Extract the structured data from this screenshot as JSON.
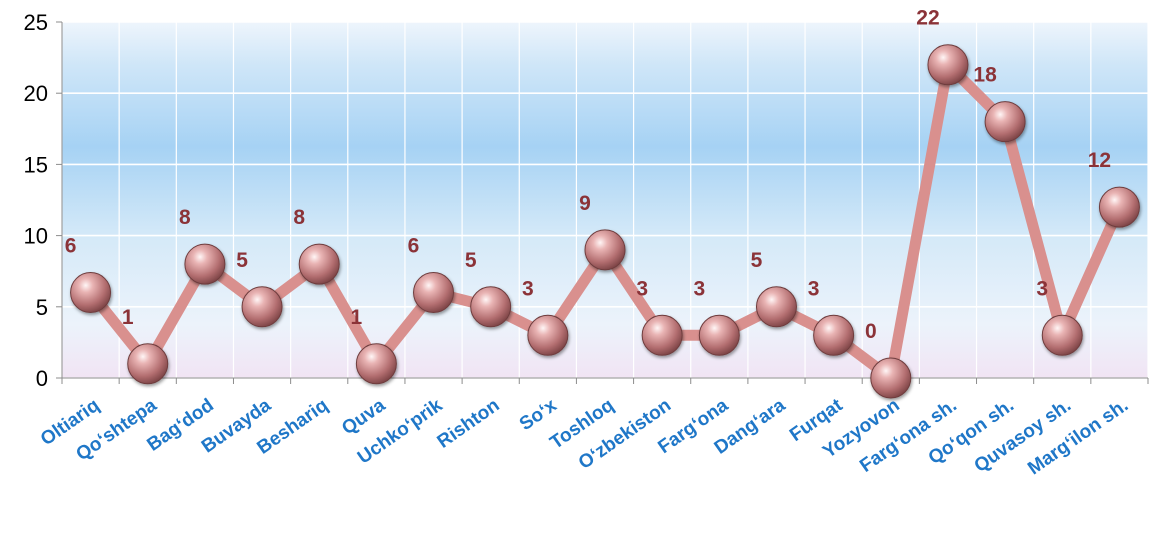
{
  "chart_data": {
    "type": "line",
    "categories": [
      "Oltiariq",
      "Qo‘shtepa",
      "Bag‘dod",
      "Buvayda",
      "Beshariq",
      "Quva",
      "Uchko‘prik",
      "Rishton",
      "So‘x",
      "Toshloq",
      "O‘zbekiston",
      "Farg‘ona",
      "Dang‘ara",
      "Furqat",
      "Yozyovon",
      "Farg‘ona sh.",
      "Qo‘qon sh.",
      "Quvasoy sh.",
      "Marg‘ilon sh."
    ],
    "values": [
      6,
      1,
      8,
      5,
      8,
      1,
      6,
      5,
      3,
      9,
      3,
      3,
      5,
      3,
      0,
      22,
      18,
      3,
      12
    ],
    "data_labels": [
      "6",
      "1",
      "8",
      "5",
      "8",
      "1",
      "6",
      "5",
      "3",
      "9",
      "3",
      "3",
      "5",
      "3",
      "0",
      "22",
      "18",
      "3",
      "12"
    ],
    "yticks": [
      "0",
      "5",
      "10",
      "15",
      "20",
      "25"
    ],
    "ylim": [
      0,
      25
    ],
    "grid": true,
    "legend": "none",
    "colors": {
      "line": "#d9908e",
      "marker": "#c07a7c",
      "data_label": "#8b3338",
      "category_label": "#1f77c8",
      "background_top": "#e8f2fb",
      "background_mid": "#a9d4f5",
      "background_bottom": "#f2e6f5"
    }
  }
}
